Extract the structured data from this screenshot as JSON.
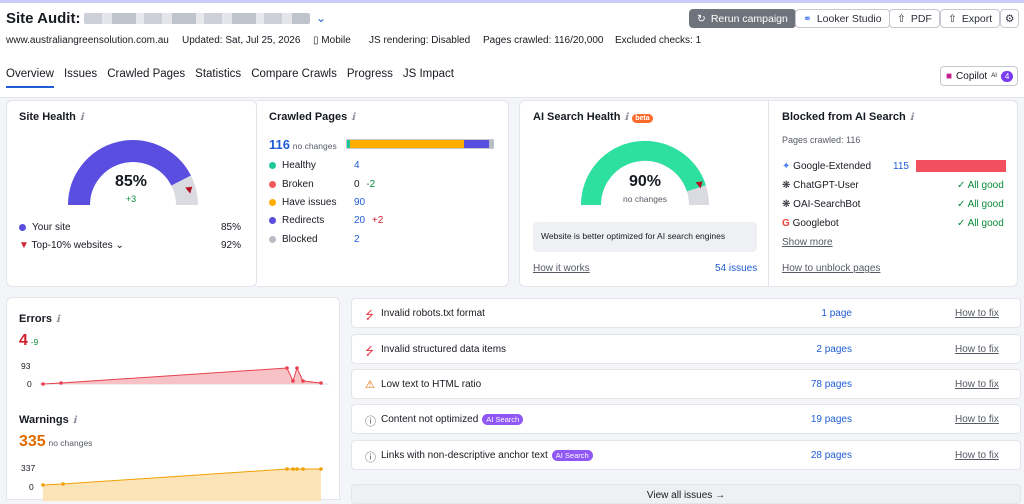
{
  "header": {
    "title": "Site Audit:",
    "buttons": {
      "rerun": "Rerun campaign",
      "looker": "Looker Studio",
      "pdf": "PDF",
      "export": "Export"
    },
    "meta": {
      "domain": "www.australiangreensolution.com.au",
      "updated": "Updated: Sat, Jul 25, 2026",
      "device": "Mobile",
      "js_rendering": "JS rendering: Disabled",
      "pages_crawled": "Pages crawled: 116/20,000",
      "excluded": "Excluded checks: 1"
    }
  },
  "tabs": [
    "Overview",
    "Issues",
    "Crawled Pages",
    "Statistics",
    "Compare Crawls",
    "Progress",
    "JS Impact"
  ],
  "copilot": {
    "label": "Copilot",
    "sup": "AI",
    "count": "4"
  },
  "site_health": {
    "title": "Site Health",
    "value": "85%",
    "delta": "+3",
    "your_site_label": "Your site",
    "your_site_value": "85%",
    "top10_label": "Top-10% websites",
    "top10_value": "92%",
    "fill_percent": 85,
    "marker_percent": 92
  },
  "crawled_pages": {
    "title": "Crawled Pages",
    "count": "116",
    "change": "no changes",
    "items": [
      {
        "label": "Healthy",
        "value": "4",
        "delta": "",
        "color": "#1cc896"
      },
      {
        "label": "Broken",
        "value": "0",
        "delta": "-2",
        "color": "#f25a5a"
      },
      {
        "label": "Have issues",
        "value": "90",
        "delta": "",
        "color": "#ffae00"
      },
      {
        "label": "Redirects",
        "value": "20",
        "delta": "+2",
        "color": "#5a4ee0"
      },
      {
        "label": "Blocked",
        "value": "2",
        "delta": "",
        "color": "#b9bcc4"
      }
    ]
  },
  "ai_health": {
    "title": "AI Search Health",
    "beta": "beta",
    "value": "90%",
    "change": "no changes",
    "note": "Website is better optimized for AI search engines",
    "how_link": "How it works",
    "issues_link": "54 issues",
    "fill_percent": 90
  },
  "blocked_ai": {
    "title": "Blocked from AI Search",
    "subtitle": "Pages crawled: 116",
    "bots": [
      {
        "name": "Google-Extended",
        "value": "115",
        "status": ""
      },
      {
        "name": "ChatGPT-User",
        "value": "",
        "status": "All good"
      },
      {
        "name": "OAI-SearchBot",
        "value": "",
        "status": "All good"
      },
      {
        "name": "Googlebot",
        "value": "",
        "status": "All good"
      }
    ],
    "more": "Show more",
    "unblock": "How to unblock pages"
  },
  "errors": {
    "title": "Errors",
    "value": "4",
    "delta": "-9",
    "y_max": "93",
    "y_min": "0"
  },
  "warnings": {
    "title": "Warnings",
    "value": "335",
    "change": "no changes",
    "y_max": "337",
    "y_min": "0"
  },
  "issues": [
    {
      "icon": "error",
      "text": "Invalid robots.txt format",
      "tag": "",
      "pages": "1 page",
      "fix": "How to fix"
    },
    {
      "icon": "error",
      "text": "Invalid structured data items",
      "tag": "",
      "pages": "2 pages",
      "fix": "How to fix"
    },
    {
      "icon": "warning",
      "text": "Low text to HTML ratio",
      "tag": "",
      "pages": "78 pages",
      "fix": "How to fix"
    },
    {
      "icon": "notice",
      "text": "Content not optimized",
      "tag": "AI Search",
      "pages": "19 pages",
      "fix": "How to fix"
    },
    {
      "icon": "notice",
      "text": "Links with non-descriptive anchor text",
      "tag": "AI Search",
      "pages": "28 pages",
      "fix": "How to fix"
    }
  ],
  "view_all": "View all issues"
}
